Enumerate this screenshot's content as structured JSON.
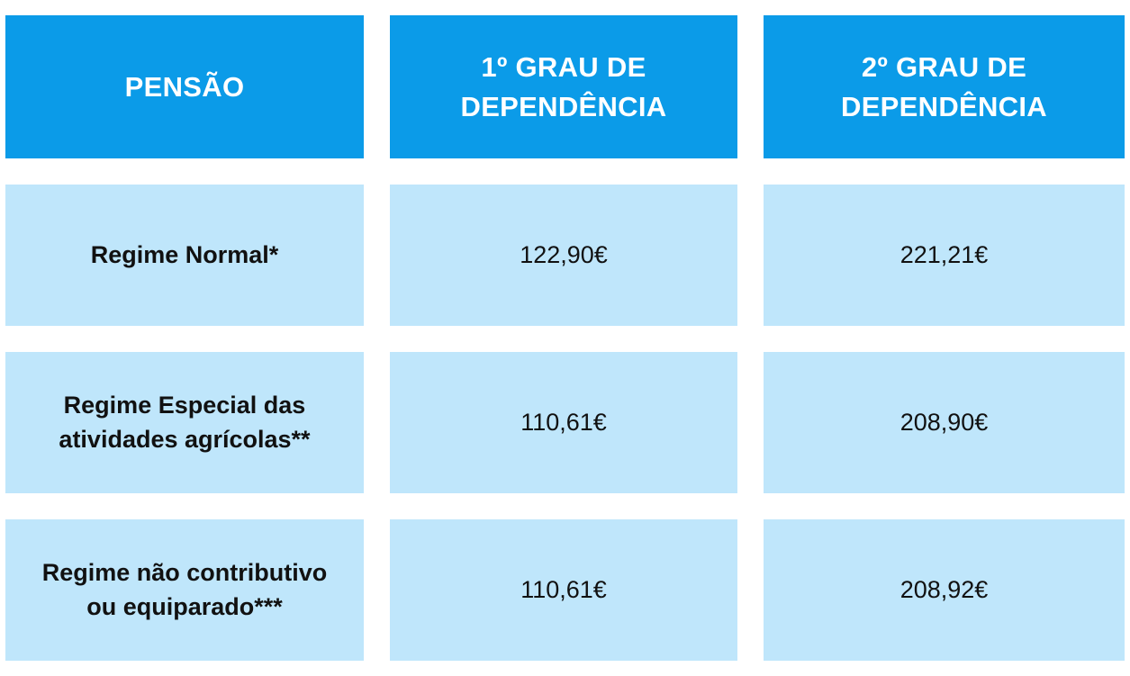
{
  "header": {
    "col1": "PENSÃO",
    "col2_line1": "1º GRAU DE",
    "col2_line2": "DEPENDÊNCIA",
    "col3_line1": "2º GRAU DE",
    "col3_line2": "DEPENDÊNCIA"
  },
  "rows": [
    {
      "label_line1": "Regime Normal*",
      "label_line2": "",
      "grau1": "122,90€",
      "grau2": "221,21€"
    },
    {
      "label_line1": "Regime Especial das",
      "label_line2": "atividades agrícolas**",
      "grau1": "110,61€",
      "grau2": "208,90€"
    },
    {
      "label_line1": "Regime não contributivo",
      "label_line2": "ou equiparado***",
      "grau1": "110,61€",
      "grau2": "208,92€"
    }
  ],
  "colors": {
    "header_bg": "#0b9be8",
    "header_text": "#ffffff",
    "cell_bg": "#bfe6fb",
    "cell_text": "#111111"
  }
}
